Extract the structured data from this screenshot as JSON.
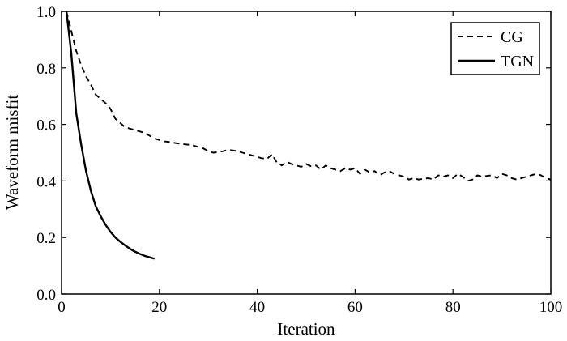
{
  "chart_data": {
    "type": "line",
    "title": "",
    "xlabel": "Iteration",
    "ylabel": "Waveform misfit",
    "xlim": [
      0,
      100
    ],
    "ylim": [
      0,
      1.0
    ],
    "xticks": [
      0,
      20,
      40,
      60,
      80,
      100
    ],
    "xtick_labels": [
      "0",
      "20",
      "40",
      "60",
      "80",
      "100"
    ],
    "yticks": [
      0,
      0.2,
      0.4,
      0.6,
      0.8,
      1.0
    ],
    "ytick_labels": [
      "0.0",
      "0.2",
      "0.4",
      "0.6",
      "0.8",
      "1.0"
    ],
    "grid": false,
    "legend": {
      "position": "top-right"
    },
    "series": [
      {
        "name": "CG",
        "style": "dashed",
        "color": "#000000",
        "x": [
          1,
          2,
          3,
          4,
          5,
          6,
          7,
          8,
          9,
          10,
          11,
          12,
          13,
          14,
          15,
          16,
          17,
          18,
          19,
          20,
          21,
          22,
          23,
          24,
          25,
          26,
          27,
          28,
          29,
          30,
          31,
          32,
          33,
          34,
          35,
          36,
          37,
          38,
          39,
          40,
          41,
          42,
          43,
          44,
          45,
          46,
          47,
          48,
          49,
          50,
          51,
          52,
          53,
          54,
          55,
          56,
          57,
          58,
          59,
          60,
          61,
          62,
          63,
          64,
          65,
          66,
          67,
          68,
          69,
          70,
          71,
          72,
          73,
          74,
          75,
          76,
          77,
          78,
          79,
          80,
          81,
          82,
          83,
          84,
          85,
          86,
          87,
          88,
          89,
          90,
          91,
          92,
          93,
          94,
          95,
          96,
          97,
          98,
          99,
          100
        ],
        "y": [
          1.0,
          0.93,
          0.86,
          0.81,
          0.77,
          0.74,
          0.705,
          0.69,
          0.675,
          0.655,
          0.62,
          0.605,
          0.59,
          0.585,
          0.58,
          0.575,
          0.57,
          0.56,
          0.55,
          0.545,
          0.54,
          0.538,
          0.535,
          0.532,
          0.53,
          0.528,
          0.525,
          0.52,
          0.515,
          0.505,
          0.5,
          0.502,
          0.505,
          0.51,
          0.508,
          0.505,
          0.5,
          0.495,
          0.49,
          0.485,
          0.48,
          0.478,
          0.495,
          0.465,
          0.455,
          0.468,
          0.46,
          0.455,
          0.45,
          0.46,
          0.452,
          0.455,
          0.44,
          0.455,
          0.445,
          0.44,
          0.435,
          0.445,
          0.44,
          0.445,
          0.425,
          0.44,
          0.43,
          0.435,
          0.42,
          0.43,
          0.435,
          0.425,
          0.42,
          0.415,
          0.405,
          0.41,
          0.405,
          0.408,
          0.41,
          0.405,
          0.42,
          0.415,
          0.42,
          0.41,
          0.425,
          0.415,
          0.4,
          0.405,
          0.42,
          0.415,
          0.418,
          0.42,
          0.41,
          0.425,
          0.42,
          0.41,
          0.405,
          0.41,
          0.415,
          0.42,
          0.425,
          0.42,
          0.41,
          0.405
        ]
      },
      {
        "name": "TGN",
        "style": "solid",
        "color": "#000000",
        "x": [
          1,
          2,
          3,
          4,
          5,
          6,
          7,
          8,
          9,
          10,
          11,
          12,
          13,
          14,
          15,
          16,
          17,
          18,
          19
        ],
        "y": [
          1.0,
          0.85,
          0.64,
          0.53,
          0.435,
          0.365,
          0.31,
          0.275,
          0.245,
          0.22,
          0.2,
          0.185,
          0.172,
          0.16,
          0.15,
          0.142,
          0.135,
          0.13,
          0.125
        ]
      }
    ]
  }
}
